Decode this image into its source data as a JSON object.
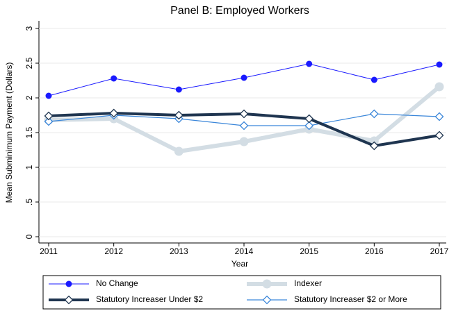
{
  "chart_data": {
    "type": "line",
    "title": "Panel B: Employed Workers",
    "x_label": "Year",
    "y_label": "Mean Subminimum Payment (Dollars)",
    "x": [
      2011,
      2012,
      2013,
      2014,
      2015,
      2016,
      2017
    ],
    "xlim": [
      2011,
      2017
    ],
    "xticks": [
      2011,
      2012,
      2013,
      2014,
      2015,
      2016,
      2017
    ],
    "ylim": [
      0,
      3
    ],
    "yticks": [
      0,
      {
        "value": 0.5,
        "label": ".5"
      },
      1,
      1.5,
      2,
      2.5,
      3
    ],
    "grid": true,
    "legend": "bottom",
    "series": [
      {
        "name": "No Change",
        "color": "#1a1aff",
        "marker": "circle",
        "values": [
          2.03,
          2.28,
          2.12,
          2.29,
          2.49,
          2.26,
          2.48
        ]
      },
      {
        "name": "Indexer",
        "color": "#d3dde4",
        "marker": "circle",
        "values": [
          1.68,
          1.7,
          1.23,
          1.37,
          1.55,
          1.38,
          2.16
        ]
      },
      {
        "name": "Statutory Increaser Under $2",
        "color": "#1f3550",
        "marker": "diamond",
        "values": [
          1.74,
          1.78,
          1.75,
          1.77,
          1.7,
          1.31,
          1.46
        ]
      },
      {
        "name": "Statutory Increaser $2 or More",
        "color": "#3a86d9",
        "marker": "diamond",
        "values": [
          1.66,
          1.75,
          1.7,
          1.6,
          1.6,
          1.77,
          1.73
        ]
      }
    ]
  }
}
